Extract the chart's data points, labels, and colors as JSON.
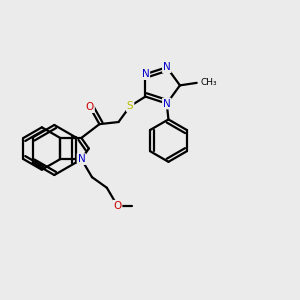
{
  "bg_color": "#ebebeb",
  "atom_colors": {
    "C": "#000000",
    "N": "#0000cc",
    "O": "#cc0000",
    "S": "#bbbb00"
  },
  "bond_color": "#000000",
  "bond_width": 1.6,
  "dbo": 0.012
}
